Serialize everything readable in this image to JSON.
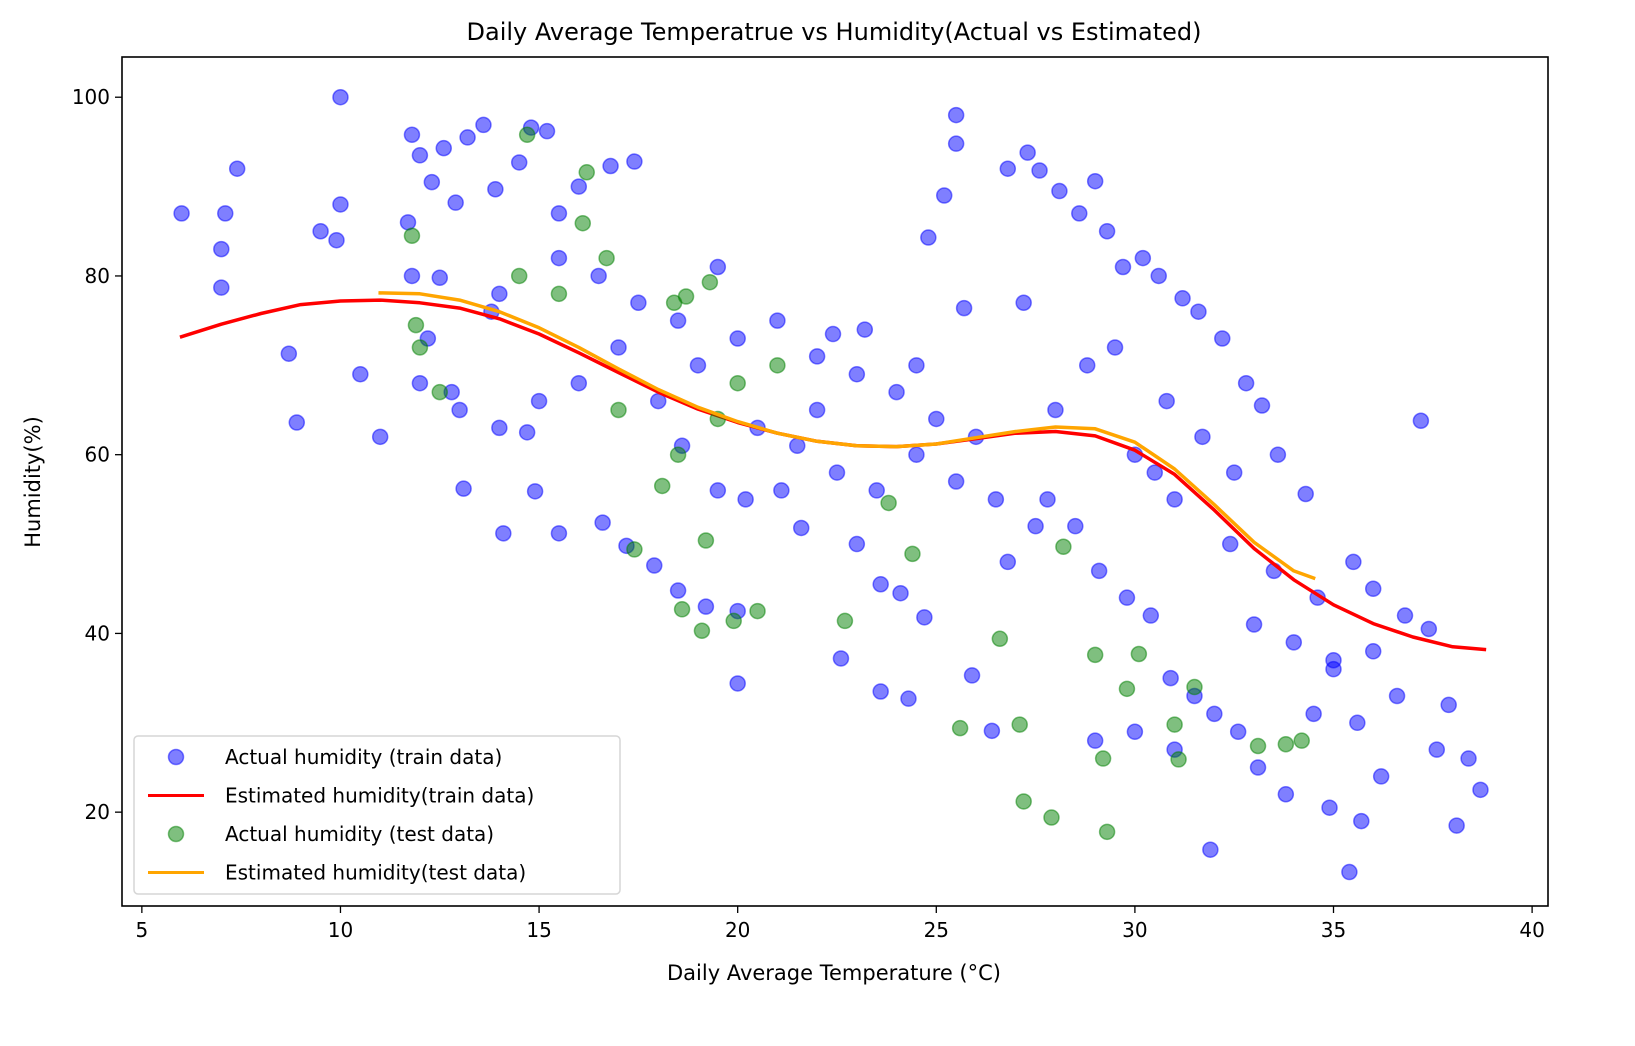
{
  "chart_data": {
    "type": "scatter",
    "title": "Daily Average Temperatrue vs Humidity(Actual vs Estimated)",
    "xlabel": "Daily Average Temperature (°C)",
    "ylabel": "Humidity(%)",
    "xlim": [
      4.5,
      40.4
    ],
    "ylim": [
      9.5,
      104.5
    ],
    "xticks": [
      5,
      10,
      15,
      20,
      25,
      30,
      35,
      40
    ],
    "yticks": [
      20,
      40,
      60,
      80,
      100
    ],
    "grid": false,
    "legend_position": "lower-left",
    "note": "Scatter values are an approximate, estimated sample representative of the visible point cloud (~1500 points in the original); they were not read exactly. Curve keypoints are read from the axes.",
    "series": [
      {
        "name": "Actual humidity (train data)",
        "kind": "scatter",
        "color": "#0000ff",
        "alpha": 0.5,
        "approximate": true,
        "points": [
          [
            6,
            87
          ],
          [
            7,
            83
          ],
          [
            7,
            78.7
          ],
          [
            7.1,
            87
          ],
          [
            7.4,
            92
          ],
          [
            8.7,
            71.3
          ],
          [
            8.9,
            63.6
          ],
          [
            9.5,
            85
          ],
          [
            9.9,
            84
          ],
          [
            10,
            100
          ],
          [
            10,
            88
          ],
          [
            10.5,
            69
          ],
          [
            11,
            62
          ],
          [
            11.7,
            86
          ],
          [
            11.8,
            95.8
          ],
          [
            12,
            93.5
          ],
          [
            12.3,
            90.5
          ],
          [
            12.6,
            94.3
          ],
          [
            12.9,
            88.2
          ],
          [
            13.2,
            95.5
          ],
          [
            13.6,
            96.9
          ],
          [
            13.9,
            89.7
          ],
          [
            14.5,
            92.7
          ],
          [
            14.8,
            96.6
          ],
          [
            15.2,
            96.2
          ],
          [
            15.5,
            87
          ],
          [
            16,
            90
          ],
          [
            16.8,
            92.3
          ],
          [
            17.4,
            92.8
          ],
          [
            11.8,
            80
          ],
          [
            12.2,
            73
          ],
          [
            12.8,
            67
          ],
          [
            13.1,
            56.2
          ],
          [
            13.8,
            76
          ],
          [
            14.1,
            51.2
          ],
          [
            14.7,
            62.5
          ],
          [
            14.9,
            55.9
          ],
          [
            15.5,
            51.2
          ],
          [
            16.6,
            52.4
          ],
          [
            17.2,
            49.8
          ],
          [
            17.9,
            47.6
          ],
          [
            18.5,
            44.8
          ],
          [
            19.2,
            43
          ],
          [
            20,
            34.4
          ],
          [
            20,
            42.5
          ],
          [
            21.1,
            56
          ],
          [
            21.6,
            51.8
          ],
          [
            22.4,
            73.5
          ],
          [
            22.6,
            37.2
          ],
          [
            23,
            50
          ],
          [
            23.6,
            45.5
          ],
          [
            23.6,
            33.5
          ],
          [
            24.1,
            44.5
          ],
          [
            24.3,
            32.7
          ],
          [
            24.7,
            41.8
          ],
          [
            24.8,
            84.3
          ],
          [
            25.2,
            89
          ],
          [
            25.5,
            98
          ],
          [
            25.5,
            94.8
          ],
          [
            25.7,
            76.4
          ],
          [
            25.9,
            35.3
          ],
          [
            26.4,
            29.1
          ],
          [
            26.8,
            92
          ],
          [
            27.2,
            77
          ],
          [
            27.3,
            93.8
          ],
          [
            27.6,
            91.8
          ],
          [
            28.1,
            89.5
          ],
          [
            28.6,
            87
          ],
          [
            29,
            90.6
          ],
          [
            29.3,
            85
          ],
          [
            29.7,
            81
          ],
          [
            30.2,
            82
          ],
          [
            30.6,
            80
          ],
          [
            31.2,
            77.5
          ],
          [
            31.6,
            76
          ],
          [
            31.9,
            15.8
          ],
          [
            32.2,
            73
          ],
          [
            32.8,
            68
          ],
          [
            33.2,
            65.5
          ],
          [
            33.6,
            60
          ],
          [
            34.3,
            55.6
          ],
          [
            34.9,
            20.5
          ],
          [
            35.4,
            13.3
          ],
          [
            35.7,
            19
          ],
          [
            36.2,
            24
          ],
          [
            36.6,
            33
          ],
          [
            37.2,
            63.8
          ],
          [
            37.4,
            40.5
          ],
          [
            37.9,
            32
          ],
          [
            38.1,
            18.5
          ],
          [
            38.4,
            26
          ],
          [
            38.7,
            22.5
          ],
          [
            26.5,
            55
          ],
          [
            27.8,
            55
          ],
          [
            28.5,
            52
          ],
          [
            29.1,
            47
          ],
          [
            29.8,
            44
          ],
          [
            30.4,
            42
          ],
          [
            30.9,
            35
          ],
          [
            31.5,
            33
          ],
          [
            32,
            31
          ],
          [
            32.6,
            29
          ],
          [
            33.1,
            25
          ],
          [
            33.8,
            22
          ],
          [
            34.5,
            31
          ],
          [
            35,
            36
          ],
          [
            35.6,
            30
          ],
          [
            36,
            38
          ],
          [
            36.8,
            42
          ],
          [
            37.6,
            27
          ],
          [
            30,
            60
          ],
          [
            30.5,
            58
          ],
          [
            31,
            55
          ],
          [
            32.4,
            50
          ],
          [
            33.5,
            47
          ],
          [
            34.6,
            44
          ],
          [
            35.5,
            48
          ],
          [
            28,
            65
          ],
          [
            28.8,
            70
          ],
          [
            29.5,
            72
          ],
          [
            30.8,
            66
          ],
          [
            31.7,
            62
          ],
          [
            32.5,
            58
          ],
          [
            20.5,
            63
          ],
          [
            21.5,
            61
          ],
          [
            22.5,
            58
          ],
          [
            23.5,
            56
          ],
          [
            24.5,
            60
          ],
          [
            25.5,
            57
          ],
          [
            26,
            62
          ],
          [
            19,
            70
          ],
          [
            18,
            66
          ],
          [
            17,
            72
          ],
          [
            16,
            68
          ],
          [
            15,
            66
          ],
          [
            14,
            63
          ],
          [
            13,
            65
          ],
          [
            12,
            68
          ],
          [
            18.6,
            61
          ],
          [
            19.5,
            56
          ],
          [
            20.2,
            55
          ],
          [
            22,
            65
          ],
          [
            23,
            69
          ],
          [
            24,
            67
          ],
          [
            25,
            64
          ],
          [
            26.8,
            48
          ],
          [
            27.5,
            52
          ],
          [
            29,
            28
          ],
          [
            30,
            29
          ],
          [
            31,
            27
          ],
          [
            33,
            41
          ],
          [
            34,
            39
          ],
          [
            35,
            37
          ],
          [
            36,
            45
          ],
          [
            12.5,
            79.8
          ],
          [
            14,
            78
          ],
          [
            15.5,
            82
          ],
          [
            16.5,
            80
          ],
          [
            17.5,
            77
          ],
          [
            18.5,
            75
          ],
          [
            19.5,
            81
          ],
          [
            20,
            73
          ],
          [
            21,
            75
          ],
          [
            22,
            71
          ],
          [
            23.2,
            74
          ],
          [
            24.5,
            70
          ]
        ]
      },
      {
        "name": "Estimated humidity(train data)",
        "kind": "line",
        "color": "#ff0000",
        "points": [
          [
            6,
            73.2
          ],
          [
            7,
            74.6
          ],
          [
            8,
            75.8
          ],
          [
            9,
            76.8
          ],
          [
            10,
            77.2
          ],
          [
            11,
            77.3
          ],
          [
            12,
            77
          ],
          [
            13,
            76.4
          ],
          [
            14,
            75.2
          ],
          [
            15,
            73.5
          ],
          [
            16,
            71.4
          ],
          [
            17,
            69.2
          ],
          [
            18,
            67
          ],
          [
            19,
            65.1
          ],
          [
            20,
            63.6
          ],
          [
            21,
            62.4
          ],
          [
            22,
            61.5
          ],
          [
            23,
            61
          ],
          [
            24,
            60.9
          ],
          [
            25,
            61.2
          ],
          [
            26,
            61.8
          ],
          [
            27,
            62.4
          ],
          [
            28,
            62.6
          ],
          [
            29,
            62.1
          ],
          [
            30,
            60.5
          ],
          [
            31,
            57.8
          ],
          [
            32,
            53.8
          ],
          [
            33,
            49.5
          ],
          [
            34,
            46
          ],
          [
            35,
            43.2
          ],
          [
            36,
            41.1
          ],
          [
            37,
            39.6
          ],
          [
            38,
            38.5
          ],
          [
            38.8,
            38.2
          ]
        ]
      },
      {
        "name": "Actual humidity (test data)",
        "kind": "scatter",
        "color": "#008000",
        "alpha": 0.5,
        "approximate": true,
        "points": [
          [
            11.8,
            84.5
          ],
          [
            11.9,
            74.5
          ],
          [
            12,
            72
          ],
          [
            14.7,
            95.8
          ],
          [
            16.2,
            91.6
          ],
          [
            16.1,
            85.9
          ],
          [
            16.7,
            82
          ],
          [
            18.4,
            77
          ],
          [
            18.7,
            77.7
          ],
          [
            19.3,
            79.3
          ],
          [
            17.4,
            49.4
          ],
          [
            18.1,
            56.5
          ],
          [
            18.6,
            42.7
          ],
          [
            19.1,
            40.3
          ],
          [
            19.2,
            50.4
          ],
          [
            19.9,
            41.4
          ],
          [
            20.5,
            42.5
          ],
          [
            22.7,
            41.4
          ],
          [
            23.8,
            54.6
          ],
          [
            24.4,
            48.9
          ],
          [
            25.6,
            29.4
          ],
          [
            26.6,
            39.4
          ],
          [
            27.1,
            29.8
          ],
          [
            27.2,
            21.2
          ],
          [
            27.9,
            19.4
          ],
          [
            28.2,
            49.7
          ],
          [
            29,
            37.6
          ],
          [
            29.2,
            26
          ],
          [
            29.3,
            17.8
          ],
          [
            29.8,
            33.8
          ],
          [
            30.1,
            37.7
          ],
          [
            31,
            29.8
          ],
          [
            31.1,
            25.9
          ],
          [
            31.5,
            34
          ],
          [
            33.1,
            27.4
          ],
          [
            33.8,
            27.6
          ],
          [
            34.2,
            28
          ],
          [
            21,
            70
          ],
          [
            20,
            68
          ],
          [
            19.5,
            64
          ],
          [
            18.5,
            60
          ],
          [
            17,
            65
          ],
          [
            15.5,
            78
          ],
          [
            14.5,
            80
          ],
          [
            12.5,
            67
          ]
        ]
      },
      {
        "name": "Estimated humidity(test data)",
        "kind": "line",
        "color": "#ffa500",
        "points": [
          [
            11,
            78.1
          ],
          [
            12,
            78
          ],
          [
            13,
            77.3
          ],
          [
            14,
            76
          ],
          [
            15,
            74.2
          ],
          [
            16,
            72
          ],
          [
            17,
            69.6
          ],
          [
            18,
            67.3
          ],
          [
            19,
            65.3
          ],
          [
            20,
            63.7
          ],
          [
            21,
            62.4
          ],
          [
            22,
            61.5
          ],
          [
            23,
            61
          ],
          [
            24,
            60.9
          ],
          [
            25,
            61.2
          ],
          [
            26,
            61.9
          ],
          [
            27,
            62.6
          ],
          [
            28,
            63.1
          ],
          [
            29,
            62.9
          ],
          [
            30,
            61.4
          ],
          [
            31,
            58.4
          ],
          [
            32,
            54.4
          ],
          [
            33,
            50.2
          ],
          [
            34,
            47
          ],
          [
            34.5,
            46.2
          ]
        ]
      }
    ]
  }
}
